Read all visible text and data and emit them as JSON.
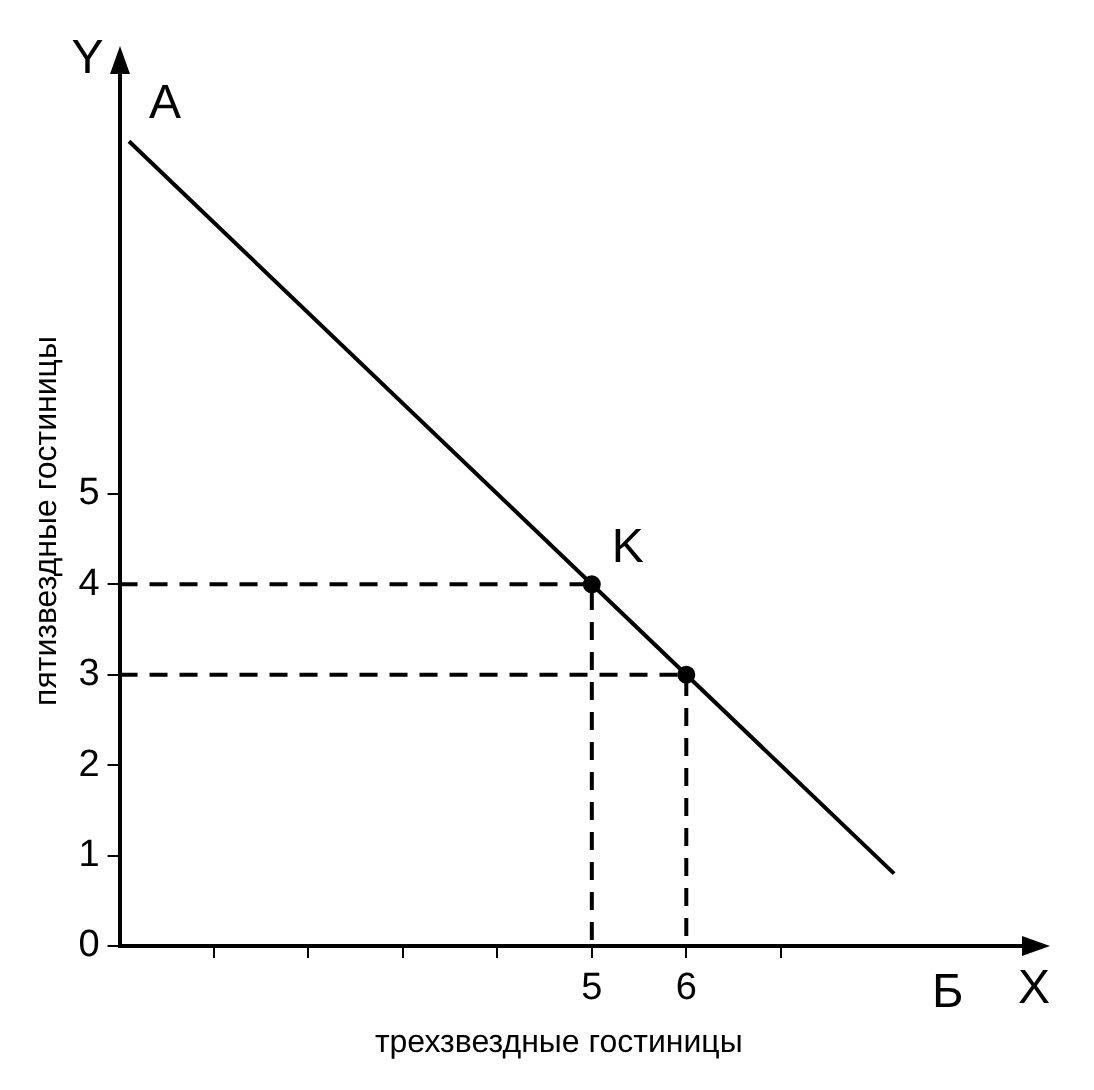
{
  "chart_data": {
    "type": "line",
    "xlabel": "трехзвездные гостиницы",
    "ylabel": "пятизвездные гостиницы",
    "xlim": [
      0,
      9.3
    ],
    "ylim": [
      0,
      9.4
    ],
    "xticks": [
      {
        "value": 1,
        "label": null
      },
      {
        "value": 2,
        "label": null
      },
      {
        "value": 3,
        "label": null
      },
      {
        "value": 4,
        "label": null
      },
      5,
      6,
      {
        "value": 7,
        "label": null
      }
    ],
    "yticks": [
      0,
      1,
      2,
      3,
      4,
      5
    ],
    "series": [
      {
        "color": "#000000",
        "x": [
          0.1,
          5,
          6,
          8.2
        ],
        "values": [
          8.9,
          4,
          3,
          0.8
        ]
      },
      {
        "type": "line",
        "color": "#000000",
        "line_style": "dashed",
        "x": [
          0,
          5,
          5
        ],
        "values": [
          4,
          4,
          0
        ]
      },
      {
        "type": "line",
        "color": "#000000",
        "line_style": "dashed",
        "x": [
          0,
          6,
          6
        ],
        "values": [
          3,
          3,
          0
        ]
      },
      {
        "type": "scatter",
        "color": "#000000",
        "marker": "circle",
        "x": [
          5,
          6
        ],
        "values": [
          4,
          3
        ]
      }
    ],
    "annotations": [
      "Y",
      {
        "text": "A",
        "x": 0.1,
        "y": 8.9
      },
      {
        "text": "K",
        "x": 5,
        "y": 4
      },
      "Б",
      "X"
    ]
  }
}
